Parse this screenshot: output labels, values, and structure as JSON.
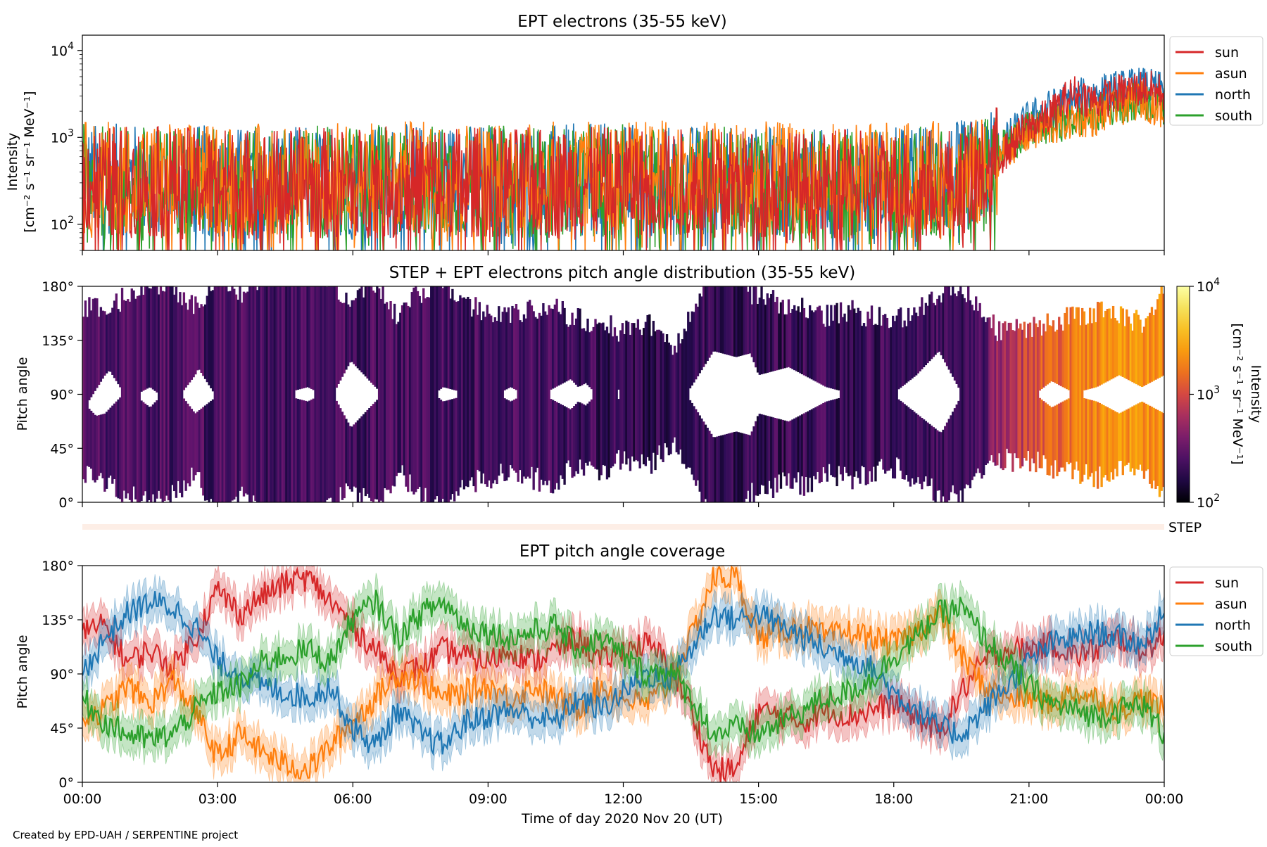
{
  "footer": {
    "credit": "Created by EPD-UAH / SERPENTINE project"
  },
  "colors": {
    "sun": "#d62728",
    "asun": "#ff7f0e",
    "north": "#1f77b4",
    "south": "#2ca02c"
  },
  "chart_data": [
    {
      "type": "line",
      "title": "EPT electrons (35-55 keV)",
      "ylabel": [
        "Intensity",
        "[cm⁻² s⁻¹ sr⁻¹ MeV⁻¹]"
      ],
      "yscale": "log",
      "ylim": [
        50,
        15000
      ],
      "yticks": [
        {
          "value": 100,
          "base": "10",
          "exp": "2"
        },
        {
          "value": 1000,
          "base": "10",
          "exp": "3"
        },
        {
          "value": 10000,
          "base": "10",
          "exp": "4"
        }
      ],
      "x_hours": [
        0,
        3,
        6,
        9,
        12,
        15,
        18,
        21,
        24
      ],
      "legend_position": "outside-right-top",
      "series": [
        {
          "name": "sun",
          "color": "#d62728",
          "x": [
            0,
            2,
            4,
            6,
            8,
            10,
            12,
            14,
            16,
            18,
            19,
            20,
            20.5,
            21,
            21.5,
            22,
            22.5,
            23,
            23.5,
            24
          ],
          "y": [
            320,
            300,
            290,
            300,
            310,
            290,
            300,
            290,
            270,
            280,
            300,
            350,
            700,
            1300,
            1800,
            3200,
            2600,
            3200,
            3700,
            3300
          ]
        },
        {
          "name": "asun",
          "color": "#ff7f0e",
          "x": [
            0,
            2,
            4,
            6,
            8,
            10,
            12,
            14,
            16,
            18,
            19,
            20,
            20.5,
            21,
            21.5,
            22,
            22.5,
            23,
            23.5,
            24
          ],
          "y": [
            350,
            340,
            330,
            340,
            360,
            340,
            360,
            360,
            330,
            330,
            350,
            380,
            700,
            1100,
            1300,
            1600,
            1700,
            2200,
            2700,
            2000
          ]
        },
        {
          "name": "north",
          "color": "#1f77b4",
          "x": [
            0,
            2,
            4,
            6,
            8,
            10,
            12,
            14,
            16,
            18,
            19,
            20,
            20.5,
            21,
            21.5,
            22,
            22.5,
            23,
            23.5,
            24
          ],
          "y": [
            330,
            320,
            300,
            310,
            330,
            320,
            330,
            310,
            290,
            300,
            330,
            380,
            900,
            1600,
            2200,
            2800,
            3200,
            3600,
            3900,
            3400
          ]
        },
        {
          "name": "south",
          "color": "#2ca02c",
          "x": [
            0,
            2,
            4,
            6,
            8,
            10,
            12,
            14,
            16,
            18,
            19,
            20,
            20.5,
            21,
            21.5,
            22,
            22.5,
            23,
            23.5,
            24
          ],
          "y": [
            320,
            310,
            300,
            310,
            320,
            310,
            320,
            300,
            280,
            290,
            320,
            360,
            800,
            1200,
            1400,
            1600,
            1800,
            2400,
            2600,
            2300
          ]
        }
      ]
    },
    {
      "type": "heatmap",
      "title": "STEP + EPT electrons pitch angle distribution (35-55 keV)",
      "ylabel": "Pitch angle",
      "ylim": [
        0,
        180
      ],
      "yticks": [
        "0°",
        "45°",
        "90°",
        "135°",
        "180°"
      ],
      "colorbar": {
        "label": [
          "Intensity",
          "[cm⁻² s⁻¹ sr⁻¹ MeV⁻¹]"
        ],
        "scale": "log",
        "range": [
          100,
          10000
        ],
        "ticks": [
          {
            "value": 100,
            "base": "10",
            "exp": "2"
          },
          {
            "value": 1000,
            "base": "10",
            "exp": "3"
          },
          {
            "value": 10000,
            "base": "10",
            "exp": "4"
          }
        ]
      },
      "intensity_profile": {
        "x": [
          0,
          3,
          6,
          9,
          12,
          13.5,
          14,
          15,
          18,
          20,
          20.5,
          21,
          22,
          23,
          24
        ],
        "values": [
          250,
          240,
          230,
          230,
          200,
          180,
          200,
          200,
          210,
          240,
          650,
          900,
          1800,
          2400,
          2000
        ]
      }
    },
    {
      "type": "line",
      "title": "",
      "label": "STEP",
      "note": "STEP coverage strip"
    },
    {
      "type": "line",
      "title": "EPT pitch angle coverage",
      "xlabel": "Time of day 2020 Nov 20 (UT)",
      "ylabel": "Pitch angle",
      "ylim": [
        0,
        180
      ],
      "yticks": [
        "0°",
        "45°",
        "90°",
        "135°",
        "180°"
      ],
      "xticks": [
        "00:00",
        "03:00",
        "06:00",
        "09:00",
        "12:00",
        "15:00",
        "18:00",
        "21:00",
        "00:00"
      ],
      "legend_position": "outside-right-top",
      "series": [
        {
          "name": "sun",
          "color": "#d62728",
          "x": [
            0,
            0.5,
            1,
            1.5,
            2,
            2.5,
            3,
            3.5,
            4,
            4.5,
            5,
            5.5,
            6,
            6.5,
            7,
            7.5,
            8,
            8.5,
            9,
            9.5,
            10,
            10.5,
            11,
            11.5,
            12,
            12.5,
            13,
            13.5,
            14,
            14.5,
            15,
            15.5,
            16,
            16.5,
            17,
            17.5,
            18,
            18.5,
            19,
            19.5,
            20,
            20.5,
            21,
            21.5,
            22,
            22.5,
            23,
            23.5,
            24
          ],
          "y": [
            125,
            130,
            100,
            110,
            95,
            120,
            160,
            140,
            155,
            165,
            170,
            150,
            130,
            110,
            90,
            95,
            110,
            105,
            100,
            110,
            100,
            110,
            120,
            100,
            110,
            115,
            100,
            60,
            10,
            10,
            60,
            55,
            50,
            60,
            55,
            60,
            65,
            55,
            40,
            75,
            100,
            110,
            110,
            115,
            105,
            110,
            120,
            110,
            120
          ]
        },
        {
          "name": "asun",
          "color": "#ff7f0e",
          "x": [
            0,
            0.5,
            1,
            1.5,
            2,
            2.5,
            3,
            3.5,
            4,
            4.5,
            5,
            5.5,
            6,
            6.5,
            7,
            7.5,
            8,
            8.5,
            9,
            9.5,
            10,
            10.5,
            11,
            11.5,
            12,
            12.5,
            13,
            13.5,
            14,
            14.5,
            15,
            15.5,
            16,
            16.5,
            17,
            17.5,
            18,
            18.5,
            19,
            19.5,
            20,
            20.5,
            21,
            21.5,
            22,
            22.5,
            23,
            23.5,
            24
          ],
          "y": [
            55,
            60,
            80,
            65,
            85,
            60,
            20,
            40,
            25,
            15,
            10,
            30,
            50,
            70,
            90,
            85,
            70,
            75,
            80,
            70,
            80,
            70,
            60,
            80,
            70,
            65,
            80,
            120,
            170,
            170,
            120,
            125,
            130,
            120,
            125,
            120,
            115,
            125,
            140,
            105,
            80,
            70,
            70,
            65,
            75,
            70,
            60,
            70,
            60
          ]
        },
        {
          "name": "north",
          "color": "#1f77b4",
          "x": [
            0,
            0.5,
            1,
            1.5,
            2,
            2.5,
            3,
            3.5,
            4,
            4.5,
            5,
            5.5,
            6,
            6.5,
            7,
            7.5,
            8,
            8.5,
            9,
            9.5,
            10,
            10.5,
            11,
            11.5,
            12,
            12.5,
            13,
            13.5,
            14,
            14.5,
            15,
            15.5,
            16,
            16.5,
            17,
            17.5,
            18,
            18.5,
            19,
            19.5,
            20,
            20.5,
            21,
            21.5,
            22,
            22.5,
            23,
            23.5,
            24
          ],
          "y": [
            90,
            120,
            140,
            150,
            145,
            130,
            100,
            90,
            80,
            75,
            70,
            80,
            45,
            30,
            60,
            40,
            30,
            50,
            55,
            60,
            55,
            50,
            70,
            60,
            75,
            90,
            85,
            110,
            140,
            135,
            140,
            130,
            120,
            110,
            105,
            95,
            75,
            60,
            45,
            40,
            60,
            80,
            100,
            115,
            120,
            125,
            120,
            115,
            140
          ]
        },
        {
          "name": "south",
          "color": "#2ca02c",
          "x": [
            0,
            0.5,
            1,
            1.5,
            2,
            2.5,
            3,
            3.5,
            4,
            4.5,
            5,
            5.5,
            6,
            6.5,
            7,
            7.5,
            8,
            8.5,
            9,
            9.5,
            10,
            10.5,
            11,
            11.5,
            12,
            12.5,
            13,
            13.5,
            14,
            14.5,
            15,
            15.5,
            16,
            16.5,
            17,
            17.5,
            18,
            18.5,
            19,
            19.5,
            20,
            20.5,
            21,
            21.5,
            22,
            22.5,
            23,
            23.5,
            24
          ],
          "y": [
            70,
            50,
            40,
            35,
            40,
            60,
            75,
            80,
            100,
            105,
            110,
            100,
            135,
            150,
            120,
            140,
            150,
            130,
            125,
            120,
            125,
            130,
            110,
            120,
            105,
            90,
            95,
            70,
            40,
            45,
            40,
            50,
            60,
            70,
            75,
            85,
            105,
            120,
            140,
            145,
            120,
            100,
            80,
            65,
            60,
            55,
            60,
            65,
            40
          ]
        }
      ]
    }
  ]
}
